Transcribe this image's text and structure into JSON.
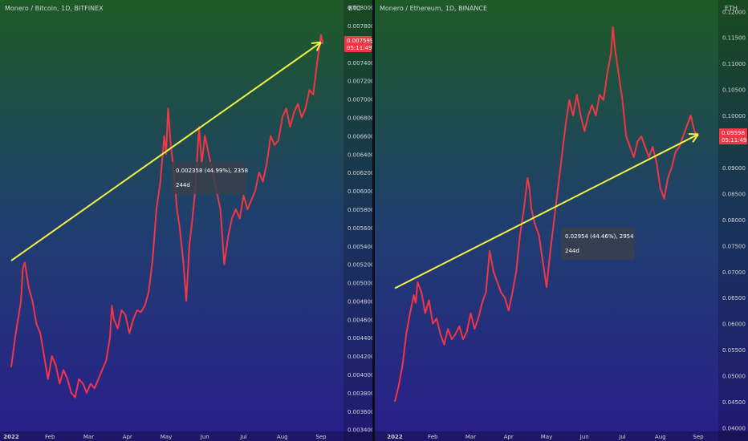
{
  "chart_data": [
    {
      "type": "line",
      "title": "Monero / Bitcoin, 1D, BITFINEX",
      "axis_unit": "BTC",
      "x_ticks": [
        "2022",
        "Feb",
        "Mar",
        "Apr",
        "May",
        "Jun",
        "Jul",
        "Aug",
        "Sep"
      ],
      "y_ticks": [
        "0.003400",
        "0.003600",
        "0.003800",
        "0.004000",
        "0.004200",
        "0.004400",
        "0.004600",
        "0.004800",
        "0.005000",
        "0.005200",
        "0.005400",
        "0.005600",
        "0.005800",
        "0.006000",
        "0.006200",
        "0.006400",
        "0.006600",
        "0.006800",
        "0.007000",
        "0.007200",
        "0.007400",
        "0.007600",
        "0.007800",
        "0.008000"
      ],
      "ylim": [
        0.00338,
        0.00808
      ],
      "price_label": "0.007599",
      "countdown": "05:11:49",
      "measure": {
        "change": "0.002358 (44.99%), 2358",
        "duration": "244d"
      },
      "trend_arrow": {
        "x": [
          0.0,
          8.0
        ],
        "y": [
          0.00524,
          0.00762
        ]
      },
      "series": [
        {
          "values": [
            [
              0.0,
              0.00408
            ],
            [
              0.1,
              0.0044
            ],
            [
              0.25,
              0.0048
            ],
            [
              0.3,
              0.00516
            ],
            [
              0.35,
              0.00522
            ],
            [
              0.45,
              0.00495
            ],
            [
              0.55,
              0.0048
            ],
            [
              0.65,
              0.00455
            ],
            [
              0.75,
              0.00445
            ],
            [
              0.85,
              0.0042
            ],
            [
              0.95,
              0.00395
            ],
            [
              1.05,
              0.0042
            ],
            [
              1.15,
              0.0041
            ],
            [
              1.25,
              0.0039
            ],
            [
              1.35,
              0.00405
            ],
            [
              1.45,
              0.00395
            ],
            [
              1.55,
              0.0038
            ],
            [
              1.65,
              0.00375
            ],
            [
              1.75,
              0.00395
            ],
            [
              1.85,
              0.0039
            ],
            [
              1.95,
              0.0038
            ],
            [
              2.05,
              0.0039
            ],
            [
              2.15,
              0.00385
            ],
            [
              2.25,
              0.00395
            ],
            [
              2.35,
              0.00405
            ],
            [
              2.45,
              0.00415
            ],
            [
              2.55,
              0.0044
            ],
            [
              2.6,
              0.00475
            ],
            [
              2.65,
              0.0046
            ],
            [
              2.75,
              0.0045
            ],
            [
              2.85,
              0.0047
            ],
            [
              2.95,
              0.00465
            ],
            [
              3.05,
              0.00445
            ],
            [
              3.15,
              0.0046
            ],
            [
              3.25,
              0.0047
            ],
            [
              3.35,
              0.00468
            ],
            [
              3.45,
              0.00475
            ],
            [
              3.55,
              0.0049
            ],
            [
              3.65,
              0.00525
            ],
            [
              3.75,
              0.0058
            ],
            [
              3.85,
              0.0061
            ],
            [
              3.95,
              0.0066
            ],
            [
              4.0,
              0.0064
            ],
            [
              4.05,
              0.0069
            ],
            [
              4.12,
              0.0065
            ],
            [
              4.2,
              0.0062
            ],
            [
              4.28,
              0.0058
            ],
            [
              4.35,
              0.0056
            ],
            [
              4.45,
              0.0052
            ],
            [
              4.52,
              0.0048
            ],
            [
              4.6,
              0.0054
            ],
            [
              4.68,
              0.0057
            ],
            [
              4.75,
              0.006
            ],
            [
              4.85,
              0.0067
            ],
            [
              4.92,
              0.0063
            ],
            [
              5.0,
              0.0066
            ],
            [
              5.1,
              0.0064
            ],
            [
              5.2,
              0.0062
            ],
            [
              5.3,
              0.006
            ],
            [
              5.4,
              0.0058
            ],
            [
              5.5,
              0.0052
            ],
            [
              5.6,
              0.0055
            ],
            [
              5.7,
              0.0057
            ],
            [
              5.8,
              0.0058
            ],
            [
              5.9,
              0.0057
            ],
            [
              6.0,
              0.00595
            ],
            [
              6.1,
              0.0058
            ],
            [
              6.2,
              0.0059
            ],
            [
              6.3,
              0.006
            ],
            [
              6.4,
              0.0062
            ],
            [
              6.5,
              0.0061
            ],
            [
              6.6,
              0.0063
            ],
            [
              6.7,
              0.0066
            ],
            [
              6.8,
              0.0065
            ],
            [
              6.9,
              0.00655
            ],
            [
              7.0,
              0.0068
            ],
            [
              7.1,
              0.0069
            ],
            [
              7.2,
              0.0067
            ],
            [
              7.3,
              0.00685
            ],
            [
              7.4,
              0.00695
            ],
            [
              7.5,
              0.0068
            ],
            [
              7.6,
              0.0069
            ],
            [
              7.7,
              0.0071
            ],
            [
              7.8,
              0.00705
            ],
            [
              7.9,
              0.0074
            ],
            [
              8.0,
              0.0077
            ],
            [
              8.05,
              0.0076
            ]
          ]
        }
      ]
    },
    {
      "type": "line",
      "title": "Monero / Ethereum, 1D, BINANCE",
      "axis_unit": "ETH",
      "x_ticks": [
        "2022",
        "Feb",
        "Mar",
        "Apr",
        "May",
        "Jun",
        "Jul",
        "Aug",
        "Sep"
      ],
      "y_ticks": [
        "0.04000",
        "0.04500",
        "0.05000",
        "0.05500",
        "0.06000",
        "0.06500",
        "0.07000",
        "0.07500",
        "0.08000",
        "0.08500",
        "0.09000",
        "0.09500",
        "0.10000",
        "0.10500",
        "0.11000",
        "0.11500",
        "0.12000"
      ],
      "ylim": [
        0.0393,
        0.1222
      ],
      "price_label": "0.09598",
      "countdown": "05:11:49",
      "measure": {
        "change": "0.02954 (44.46%), 2954",
        "duration": "244d"
      },
      "trend_arrow": {
        "x": [
          0.0,
          8.0
        ],
        "y": [
          0.0668,
          0.0964
        ]
      },
      "series": [
        {
          "values": [
            [
              0.0,
              0.045
            ],
            [
              0.1,
              0.048
            ],
            [
              0.2,
              0.052
            ],
            [
              0.3,
              0.058
            ],
            [
              0.4,
              0.062
            ],
            [
              0.5,
              0.0655
            ],
            [
              0.55,
              0.064
            ],
            [
              0.6,
              0.068
            ],
            [
              0.7,
              0.066
            ],
            [
              0.8,
              0.062
            ],
            [
              0.9,
              0.0645
            ],
            [
              1.0,
              0.06
            ],
            [
              1.1,
              0.061
            ],
            [
              1.2,
              0.058
            ],
            [
              1.3,
              0.056
            ],
            [
              1.4,
              0.059
            ],
            [
              1.5,
              0.057
            ],
            [
              1.6,
              0.058
            ],
            [
              1.7,
              0.0595
            ],
            [
              1.8,
              0.057
            ],
            [
              1.9,
              0.0585
            ],
            [
              2.0,
              0.062
            ],
            [
              2.1,
              0.059
            ],
            [
              2.2,
              0.061
            ],
            [
              2.3,
              0.064
            ],
            [
              2.4,
              0.066
            ],
            [
              2.5,
              0.074
            ],
            [
              2.6,
              0.07
            ],
            [
              2.7,
              0.068
            ],
            [
              2.8,
              0.066
            ],
            [
              2.9,
              0.065
            ],
            [
              3.0,
              0.0625
            ],
            [
              3.1,
              0.066
            ],
            [
              3.2,
              0.07
            ],
            [
              3.3,
              0.077
            ],
            [
              3.4,
              0.082
            ],
            [
              3.5,
              0.088
            ],
            [
              3.55,
              0.086
            ],
            [
              3.6,
              0.082
            ],
            [
              3.7,
              0.079
            ],
            [
              3.8,
              0.077
            ],
            [
              3.9,
              0.072
            ],
            [
              4.0,
              0.067
            ],
            [
              4.1,
              0.074
            ],
            [
              4.2,
              0.08
            ],
            [
              4.3,
              0.086
            ],
            [
              4.4,
              0.092
            ],
            [
              4.5,
              0.098
            ],
            [
              4.6,
              0.103
            ],
            [
              4.7,
              0.1
            ],
            [
              4.8,
              0.104
            ],
            [
              4.9,
              0.1
            ],
            [
              5.0,
              0.097
            ],
            [
              5.1,
              0.1
            ],
            [
              5.2,
              0.102
            ],
            [
              5.3,
              0.1
            ],
            [
              5.4,
              0.104
            ],
            [
              5.5,
              0.103
            ],
            [
              5.6,
              0.108
            ],
            [
              5.7,
              0.112
            ],
            [
              5.75,
              0.117
            ],
            [
              5.8,
              0.113
            ],
            [
              5.9,
              0.108
            ],
            [
              6.0,
              0.103
            ],
            [
              6.1,
              0.096
            ],
            [
              6.2,
              0.094
            ],
            [
              6.3,
              0.092
            ],
            [
              6.4,
              0.095
            ],
            [
              6.5,
              0.096
            ],
            [
              6.6,
              0.094
            ],
            [
              6.7,
              0.092
            ],
            [
              6.8,
              0.094
            ],
            [
              6.9,
              0.091
            ],
            [
              7.0,
              0.086
            ],
            [
              7.1,
              0.084
            ],
            [
              7.2,
              0.088
            ],
            [
              7.3,
              0.09
            ],
            [
              7.4,
              0.093
            ],
            [
              7.5,
              0.094
            ],
            [
              7.6,
              0.096
            ],
            [
              7.7,
              0.098
            ],
            [
              7.8,
              0.1
            ],
            [
              7.9,
              0.097
            ],
            [
              8.0,
              0.096
            ]
          ]
        }
      ]
    }
  ],
  "colors": {
    "line": "#f23645",
    "arrow": "#f3f343",
    "label_bg": "#f23645",
    "text": "#d1d4dc",
    "measure_bg": "#3a3f4b",
    "grad_top": "#1e5b26",
    "grad_bottom": "#2a1e8c"
  }
}
